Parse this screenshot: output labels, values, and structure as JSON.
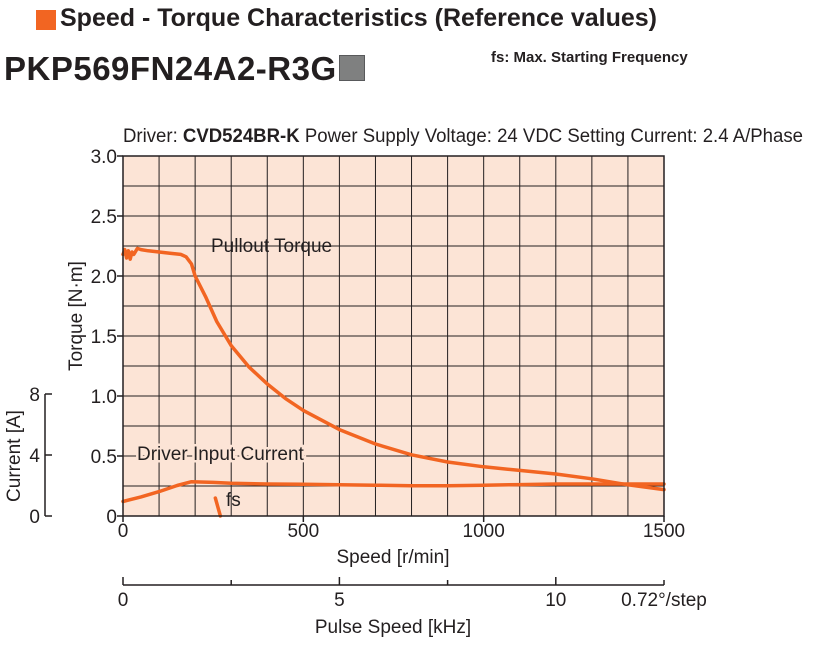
{
  "header": {
    "title": "Speed - Torque Characteristics (Reference values)",
    "model": "PKP569FN24A2-R3G",
    "note": "fs: Max. Starting Frequency",
    "accent_color": "#f26522"
  },
  "chart_data": {
    "type": "line",
    "subtitle_driver_label": "Driver:",
    "subtitle_driver": "CVD524BR-K",
    "subtitle_rest": "Power Supply Voltage: 24 VDC  Setting Current: 2.4 A/Phase",
    "xlabel": "Speed [r/min]",
    "xlim": [
      0,
      1500
    ],
    "x_ticks": [
      "0",
      "500",
      "1000",
      "1500"
    ],
    "x_grid_step": 100,
    "ylabel": "Torque [N·m]",
    "ylim": [
      0,
      3.0
    ],
    "y_ticks": [
      "0",
      "0.5",
      "1.0",
      "1.5",
      "2.0",
      "2.5",
      "3.0"
    ],
    "y_grid_step": 0.25,
    "y2label": "Current [A]",
    "y2lim": [
      0,
      8
    ],
    "y2_ticks": [
      "0",
      "4",
      "8"
    ],
    "x2label": "Pulse Speed [kHz]",
    "x2lim": [
      0,
      12.5
    ],
    "x2_ticks": [
      "0",
      "5",
      "10"
    ],
    "x2_unit": "0.72°/step",
    "grid": true,
    "background": "#fce4d6",
    "series": [
      {
        "name": "Pullout Torque",
        "axis": "torque",
        "color": "#f26522",
        "x": [
          0,
          5,
          10,
          15,
          20,
          25,
          30,
          40,
          50,
          70,
          100,
          130,
          160,
          175,
          190,
          200,
          230,
          260,
          300,
          350,
          400,
          450,
          500,
          600,
          700,
          800,
          900,
          1000,
          1100,
          1200,
          1300,
          1400,
          1500
        ],
        "values": [
          2.18,
          2.22,
          2.15,
          2.21,
          2.14,
          2.2,
          2.18,
          2.23,
          2.22,
          2.21,
          2.2,
          2.19,
          2.18,
          2.16,
          2.1,
          2.0,
          1.82,
          1.62,
          1.42,
          1.24,
          1.1,
          0.98,
          0.88,
          0.72,
          0.6,
          0.51,
          0.45,
          0.41,
          0.38,
          0.35,
          0.31,
          0.26,
          0.22
        ]
      },
      {
        "name": "Driver Input Current",
        "axis": "current",
        "color": "#f26522",
        "x": [
          0,
          50,
          100,
          150,
          190,
          250,
          300,
          400,
          500,
          600,
          700,
          800,
          900,
          1000,
          1100,
          1200,
          1300,
          1400,
          1500
        ],
        "values": [
          0.95,
          1.25,
          1.6,
          2.0,
          2.25,
          2.2,
          2.15,
          2.1,
          2.08,
          2.05,
          2.02,
          1.98,
          1.98,
          2.02,
          2.06,
          2.1,
          2.1,
          2.1,
          2.1
        ]
      }
    ],
    "fs_label": "fs",
    "fs_marker": {
      "x": [
        256,
        270
      ],
      "torque": [
        0.15,
        0.0
      ]
    }
  }
}
